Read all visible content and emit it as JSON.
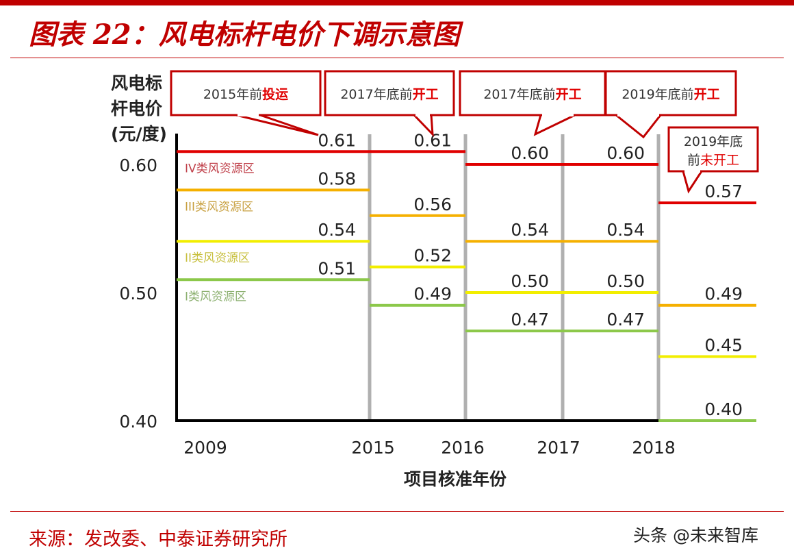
{
  "title": "图表 22：风电标杆电价下调示意图",
  "source": "来源：发改委、中泰证券研究所",
  "watermark": "头条 @未来智库",
  "chart_data": {
    "type": "line",
    "title": "",
    "ylabel": [
      "风电标",
      "杆电价",
      "(元/度)"
    ],
    "xlabel": "项目核准年份",
    "x_ticks": [
      "2009",
      "2015",
      "2016",
      "2017",
      "2018"
    ],
    "y_ticks": [
      "0.60",
      "0.50",
      "0.40"
    ],
    "ylim": [
      0.4,
      0.62
    ],
    "grid": false,
    "periods": [
      "2009",
      "2015",
      "2016",
      "2017",
      "2018"
    ],
    "series": [
      {
        "name": "IV类风资源区",
        "color": "#e00000",
        "label_color": "#c0404a",
        "values": [
          0.61,
          0.61,
          0.6,
          0.6,
          0.57
        ]
      },
      {
        "name": "III类风资源区",
        "color": "#f5b000",
        "label_color": "#c8a040",
        "values": [
          0.58,
          0.56,
          0.54,
          0.54,
          0.49
        ]
      },
      {
        "name": "II类风资源区",
        "color": "#f2ee00",
        "label_color": "#c8c040",
        "values": [
          0.54,
          0.52,
          0.5,
          0.5,
          0.45
        ]
      },
      {
        "name": "I类风资源区",
        "color": "#8cc84a",
        "label_color": "#8cb070",
        "values": [
          0.51,
          0.49,
          0.47,
          0.47,
          0.4
        ]
      }
    ],
    "annotations": [
      {
        "text": "2015年前",
        "highlight": "投运"
      },
      {
        "text": "2017年底前",
        "highlight": "开工"
      },
      {
        "text": "2017年底前",
        "highlight": "开工"
      },
      {
        "text": "2019年底前",
        "highlight": "开工"
      },
      {
        "text": "2019年底",
        "text2": "前",
        "highlight": "未开工"
      }
    ]
  }
}
